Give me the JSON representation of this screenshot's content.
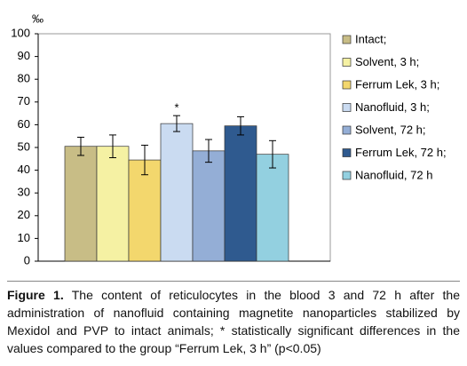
{
  "chart_data": {
    "type": "bar",
    "y_label": "‰",
    "ylim": [
      0,
      100
    ],
    "yticks": [
      0,
      10,
      20,
      30,
      40,
      50,
      60,
      70,
      80,
      90,
      100
    ],
    "series": [
      {
        "name": "Intact;",
        "color": "#c8bd86",
        "values": [
          50.5
        ],
        "errors": [
          4
        ]
      },
      {
        "name": "Solvent, 3 h;",
        "color": "#f5f1a3",
        "values": [
          50.5
        ],
        "errors": [
          5
        ]
      },
      {
        "name": "Ferrum Lek, 3 h;",
        "color": "#f3d76d",
        "values": [
          44.5
        ],
        "errors": [
          6.5
        ]
      },
      {
        "name": "Nanofluid, 3 h;",
        "color": "#cadbf1",
        "values": [
          60.5
        ],
        "errors": [
          3.5
        ],
        "annotation": "*"
      },
      {
        "name": "Solvent, 72 h;",
        "color": "#94aed6",
        "values": [
          48.5
        ],
        "errors": [
          5
        ]
      },
      {
        "name": "Ferrum Lek, 72 h;",
        "color": "#2f5a8f",
        "values": [
          59.5
        ],
        "errors": [
          4
        ]
      },
      {
        "name": "Nanofluid, 72 h",
        "color": "#93d0e0",
        "values": [
          47
        ],
        "errors": [
          6
        ]
      }
    ]
  },
  "caption": {
    "label": "Figure 1.",
    "text": "The content of reticulocytes in the blood 3 and 72 h after the administration of nanofluid containing magnetite nanoparticles stabilized by Mexidol and PVP to intact animals; * statistically significant differences in the values compared to the group “Ferrum Lek, 3 h” (p<0.05)"
  }
}
